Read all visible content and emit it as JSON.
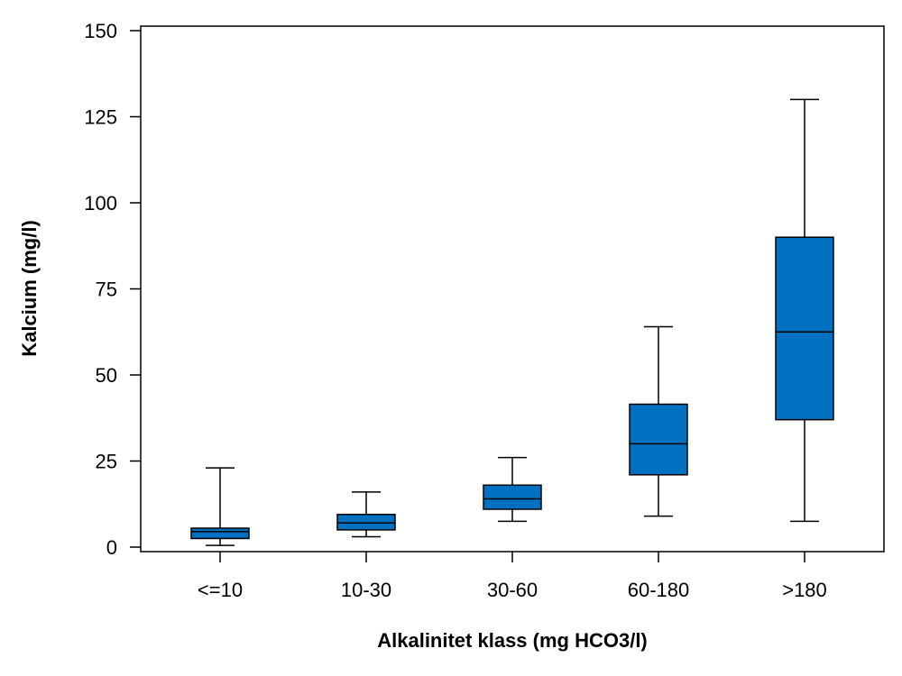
{
  "chart_data": {
    "type": "box",
    "title": "",
    "xlabel": "Alkalinitet klass (mg HCO3/l)",
    "ylabel": "Kalcium (mg/l)",
    "categories": [
      "<=10",
      "10-30",
      "30-60",
      "60-180",
      ">180"
    ],
    "boxes": [
      {
        "category": "<=10",
        "min": 0.5,
        "q1": 2.5,
        "median": 4.5,
        "q3": 5.5,
        "max": 23
      },
      {
        "category": "10-30",
        "min": 3,
        "q1": 5,
        "median": 7,
        "q3": 9.5,
        "max": 16
      },
      {
        "category": "30-60",
        "min": 7.5,
        "q1": 11,
        "median": 14,
        "q3": 18,
        "max": 26
      },
      {
        "category": "60-180",
        "min": 9,
        "q1": 21,
        "median": 30,
        "q3": 41.5,
        "max": 64
      },
      {
        "category": ">180",
        "min": 7.5,
        "q1": 37,
        "median": 62.5,
        "q3": 90,
        "max": 130
      }
    ],
    "ylim": [
      0,
      150
    ],
    "yticks": [
      0,
      25,
      50,
      75,
      100,
      125,
      150
    ],
    "grid": false,
    "legend": "none",
    "colors": {
      "box_fill": "#0070c0",
      "stroke": "#000000"
    }
  }
}
